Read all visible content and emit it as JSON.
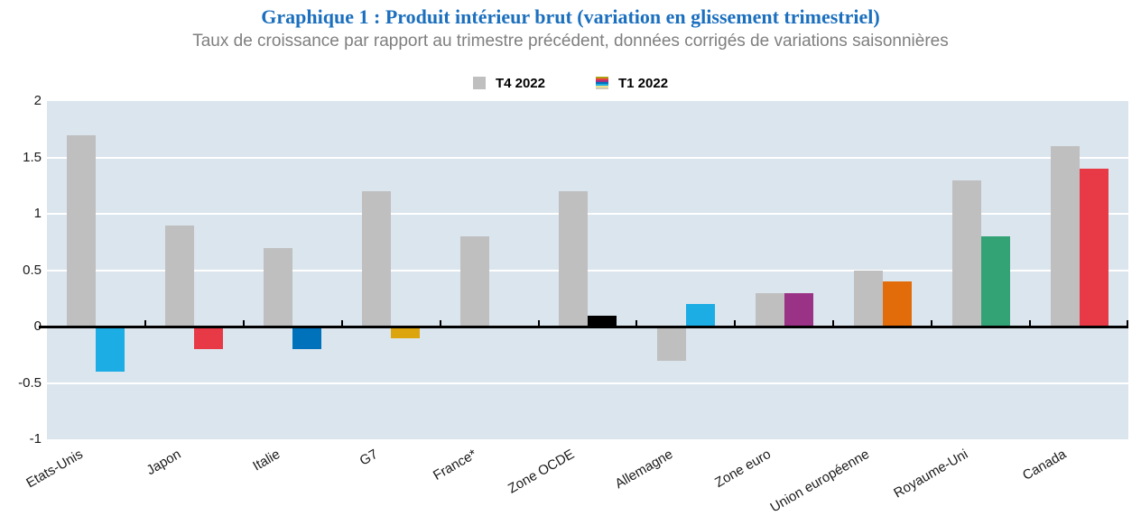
{
  "header": {
    "title": "Graphique 1 : Produit intérieur brut (variation en glissement trimestriel)",
    "subtitle": "Taux de croissance par rapport au trimestre précédent, données corrigés de variations saisonnières"
  },
  "legend": {
    "items": [
      {
        "label": "T4 2022",
        "swatch": "solid-gray"
      },
      {
        "label": "T1 2022",
        "swatch": "multicolor-stripes"
      }
    ],
    "t1_stripe_colors": [
      "#AFA012",
      "#E73946",
      "#9A3385",
      "#0072BC",
      "#1CADE4",
      "#EFE08A",
      "#CFC9B8"
    ]
  },
  "chart_data": {
    "type": "bar",
    "title": "Graphique 1 : Produit intérieur brut (variation en glissement trimestriel)",
    "subtitle": "Taux de croissance par rapport au trimestre précédent, données corrigés de variations saisonnières",
    "categories": [
      "Etats-Unis",
      "Japon",
      "Italie",
      "G7",
      "France*",
      "Zone OCDE",
      "Allemagne",
      "Zone euro",
      "Union européenne",
      "Royaume-Uni",
      "Canada"
    ],
    "series": [
      {
        "name": "T4 2022",
        "color": "#BFBFBF",
        "values": [
          1.7,
          0.9,
          0.7,
          1.2,
          0.8,
          1.2,
          -0.3,
          0.3,
          0.5,
          1.3,
          1.6
        ]
      },
      {
        "name": "T1 2022",
        "values": [
          -0.4,
          -0.2,
          -0.2,
          -0.1,
          null,
          0.1,
          0.2,
          0.3,
          0.4,
          0.8,
          1.4
        ],
        "colors": [
          "#1CADE4",
          "#E73946",
          "#0072BC",
          "#DCA50D",
          null,
          "#000000",
          "#1CADE4",
          "#9A3385",
          "#E16C09",
          "#33A376",
          "#E73946"
        ]
      }
    ],
    "ylim": [
      -1,
      2
    ],
    "yticks": [
      2,
      1.5,
      1,
      0.5,
      0,
      -0.5,
      -1
    ],
    "xlabel": "",
    "ylabel": "",
    "grid": "horizontal",
    "legend_position": "top-center",
    "x_label_rotation_deg": 30
  },
  "colors": {
    "title": "#1B6FBE",
    "subtitle": "#7F7F7F",
    "plot_background": "#DBE5EE",
    "gridline": "#FFFFFF",
    "axis": "#000000",
    "t4_bar": "#BFBFBF"
  }
}
